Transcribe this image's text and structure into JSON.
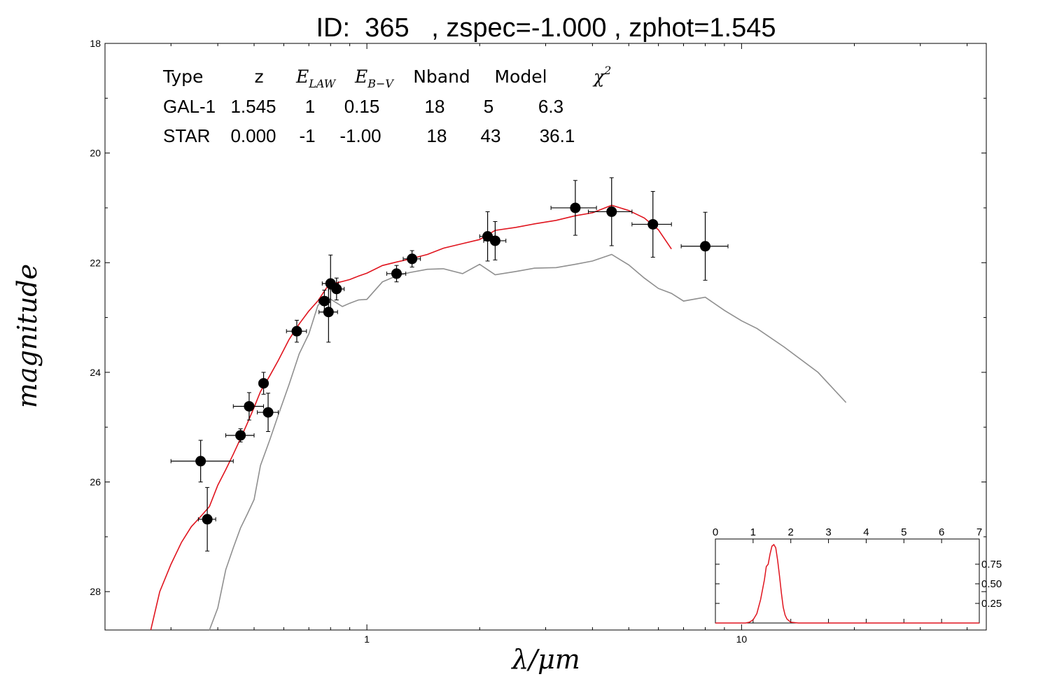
{
  "title": "ID:  365   , zspec=-1.000 , zphot=1.545",
  "chart_data": {
    "type": "scatter",
    "xlabel": "λ/μm",
    "ylabel": "magnitude",
    "xscale": "log",
    "xlim": [
      0.2,
      45
    ],
    "ylim": [
      28.7,
      18
    ],
    "y_ticks": [
      "18",
      "20",
      "22",
      "24",
      "26",
      "28"
    ],
    "x_ticks": [
      "1",
      "10"
    ],
    "colors": {
      "gal": "#e0141e",
      "star": "#8f8f8f",
      "points": "#000000"
    },
    "table": {
      "header": {
        "type": "Type",
        "z": "z",
        "elaw": "E",
        "elaw_sub": "LAW",
        "ebv": "E",
        "ebv_sub": "B−V",
        "nband": "Nband",
        "model": "Model",
        "chi": "χ",
        "chi_sup": "2"
      },
      "rows": [
        {
          "type": "GAL-1",
          "z": "1.545",
          "elaw": "1",
          "ebv": "0.15",
          "nband": "18",
          "model": "5",
          "chi2": "6.3",
          "color": "#e0141e"
        },
        {
          "type": "STAR",
          "z": "0.000",
          "elaw": "-1",
          "ebv": "-1.00",
          "nband": "18",
          "model": "43",
          "chi2": "36.1",
          "color": "#999999"
        }
      ]
    },
    "points": [
      {
        "x": 0.36,
        "y": 25.62,
        "xlo": 0.3,
        "xhi": 0.44,
        "yerr": 0.38
      },
      {
        "x": 0.375,
        "y": 26.68,
        "xlo": 0.355,
        "xhi": 0.395,
        "yerr": 0.58
      },
      {
        "x": 0.46,
        "y": 25.15,
        "xlo": 0.42,
        "xhi": 0.5,
        "yerr": 0.12
      },
      {
        "x": 0.485,
        "y": 24.62,
        "xlo": 0.44,
        "xhi": 0.53,
        "yerr": 0.25
      },
      {
        "x": 0.53,
        "y": 24.2,
        "xlo": 0.515,
        "xhi": 0.545,
        "yerr": 0.2
      },
      {
        "x": 0.545,
        "y": 24.73,
        "xlo": 0.51,
        "xhi": 0.58,
        "yerr": 0.35
      },
      {
        "x": 0.65,
        "y": 23.25,
        "xlo": 0.61,
        "xhi": 0.69,
        "yerr": 0.2
      },
      {
        "x": 0.77,
        "y": 22.7,
        "xlo": 0.745,
        "xhi": 0.795,
        "yerr": 0.2
      },
      {
        "x": 0.79,
        "y": 22.9,
        "xlo": 0.745,
        "xhi": 0.835,
        "yerr": 0.55
      },
      {
        "x": 0.8,
        "y": 22.38,
        "xlo": 0.76,
        "xhi": 0.84,
        "yerr": 0.52
      },
      {
        "x": 0.83,
        "y": 22.48,
        "xlo": 0.79,
        "xhi": 0.87,
        "yerr": 0.2
      },
      {
        "x": 1.2,
        "y": 22.2,
        "xlo": 1.13,
        "xhi": 1.27,
        "yerr": 0.15
      },
      {
        "x": 1.32,
        "y": 21.93,
        "xlo": 1.25,
        "xhi": 1.39,
        "yerr": 0.15
      },
      {
        "x": 2.1,
        "y": 21.52,
        "xlo": 2.0,
        "xhi": 2.2,
        "yerr": 0.45
      },
      {
        "x": 2.2,
        "y": 21.6,
        "xlo": 2.05,
        "xhi": 2.35,
        "yerr": 0.35
      },
      {
        "x": 3.6,
        "y": 21.0,
        "xlo": 3.1,
        "xhi": 4.1,
        "yerr": 0.5
      },
      {
        "x": 4.5,
        "y": 21.07,
        "xlo": 3.9,
        "xhi": 5.1,
        "yerr": 0.62
      },
      {
        "x": 5.8,
        "y": 21.3,
        "xlo": 5.1,
        "xhi": 6.5,
        "yerr": 0.6
      },
      {
        "x": 8.0,
        "y": 21.7,
        "xlo": 6.9,
        "xhi": 9.2,
        "yerr": 0.62
      }
    ],
    "gal_model": {
      "name": "GAL-1",
      "x": [
        0.265,
        0.28,
        0.3,
        0.32,
        0.34,
        0.36,
        0.38,
        0.4,
        0.42,
        0.44,
        0.46,
        0.48,
        0.5,
        0.52,
        0.55,
        0.58,
        0.62,
        0.66,
        0.7,
        0.74,
        0.78,
        0.82,
        0.86,
        0.9,
        0.95,
        1.0,
        1.1,
        1.2,
        1.3,
        1.45,
        1.6,
        1.8,
        2.0,
        2.2,
        2.5,
        2.8,
        3.2,
        3.6,
        4.0,
        4.5,
        5.0,
        5.5,
        6.0,
        6.5
      ],
      "y": [
        28.7,
        28.0,
        27.5,
        27.1,
        26.8,
        26.6,
        26.4,
        26.1,
        25.8,
        25.5,
        25.2,
        24.9,
        24.6,
        24.4,
        24.1,
        23.8,
        23.4,
        23.1,
        22.85,
        22.65,
        22.5,
        22.4,
        22.35,
        22.3,
        22.22,
        22.15,
        22.1,
        22.02,
        21.95,
        21.85,
        21.72,
        21.62,
        21.53,
        21.45,
        21.38,
        21.3,
        21.22,
        21.12,
        21.05,
        21.0,
        21.08,
        21.2,
        21.4,
        21.75
      ]
    },
    "star_model": {
      "name": "STAR",
      "x": [
        0.38,
        0.4,
        0.42,
        0.44,
        0.46,
        0.48,
        0.5,
        0.52,
        0.55,
        0.58,
        0.62,
        0.66,
        0.7,
        0.74,
        0.78,
        0.82,
        0.86,
        0.9,
        0.95,
        1.0,
        1.1,
        1.2,
        1.3,
        1.45,
        1.6,
        1.8,
        2.0,
        2.2,
        2.5,
        2.8,
        3.2,
        3.6,
        4.0,
        4.5,
        5.0,
        5.5,
        6.0,
        6.5,
        7.0,
        8.0,
        9.0,
        10.0,
        11.0,
        13.0,
        16.0,
        19.0
      ],
      "y": [
        28.7,
        28.3,
        27.6,
        27.2,
        26.8,
        26.5,
        26.2,
        25.8,
        25.3,
        24.8,
        24.2,
        23.6,
        23.2,
        22.9,
        22.7,
        22.75,
        22.8,
        22.7,
        22.6,
        22.55,
        22.45,
        22.3,
        22.2,
        22.1,
        22.05,
        22.1,
        22.15,
        22.3,
        22.2,
        22.1,
        22.05,
        21.95,
        21.85,
        21.95,
        22.1,
        22.3,
        22.45,
        22.5,
        22.6,
        22.75,
        22.95,
        23.1,
        23.2,
        23.5,
        24.0,
        24.55
      ]
    },
    "inset": {
      "xlim": [
        0,
        7
      ],
      "ylim": [
        0,
        1.0
      ],
      "x_ticks": [
        "0",
        "1",
        "2",
        "3",
        "4",
        "5",
        "6",
        "7"
      ],
      "y_ticks": [
        "0.25",
        "0.50",
        "0.75"
      ],
      "pdz_x": [
        0,
        0.8,
        0.9,
        1.0,
        1.1,
        1.2,
        1.3,
        1.35,
        1.4,
        1.45,
        1.5,
        1.55,
        1.6,
        1.65,
        1.7,
        1.75,
        1.8,
        1.85,
        1.9,
        2.0,
        2.2,
        7.0
      ],
      "pdz_y": [
        0,
        0,
        0.01,
        0.04,
        0.12,
        0.3,
        0.55,
        0.72,
        0.75,
        0.88,
        0.98,
        1.0,
        0.96,
        0.8,
        0.6,
        0.38,
        0.2,
        0.1,
        0.05,
        0.01,
        0,
        0
      ]
    }
  }
}
